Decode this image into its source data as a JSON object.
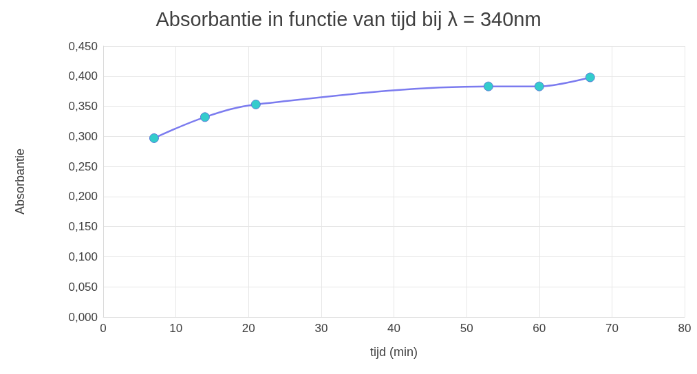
{
  "chart_data": {
    "type": "line",
    "title": "Absorbantie in functie van tijd bij λ = 340nm",
    "xlabel": "tijd (min)",
    "ylabel": "Absorbantie",
    "x": [
      7,
      14,
      21,
      53,
      60,
      67
    ],
    "series": [
      {
        "color": "#7b7bef",
        "values": [
          0.297,
          0.332,
          0.353,
          0.383,
          0.383,
          0.398
        ]
      }
    ],
    "marker": "circle",
    "line_style": "solid",
    "grid": true,
    "xlim": [
      0,
      80
    ],
    "xticks": [
      0,
      10,
      20,
      30,
      40,
      50,
      60,
      70,
      80
    ],
    "ylim": [
      0,
      0.45
    ],
    "yticks": [
      {
        "value": 0,
        "label": "0,000"
      },
      {
        "value": 0.05,
        "label": "0,050"
      },
      {
        "value": 0.1,
        "label": "0,100"
      },
      {
        "value": 0.15,
        "label": "0,150"
      },
      {
        "value": 0.2,
        "label": "0,200"
      },
      {
        "value": 0.25,
        "label": "0,250"
      },
      {
        "value": 0.3,
        "label": "0,300"
      },
      {
        "value": 0.35,
        "label": "0,350"
      },
      {
        "value": 0.4,
        "label": "0,400"
      },
      {
        "value": 0.45,
        "label": "0,450"
      }
    ]
  }
}
